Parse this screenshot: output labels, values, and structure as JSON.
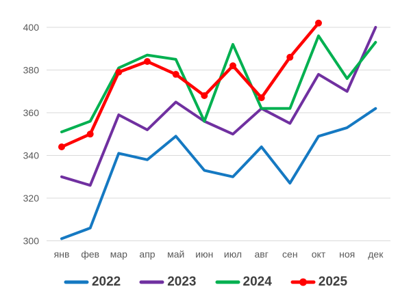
{
  "chart_data": {
    "type": "line",
    "title": "",
    "xlabel": "",
    "ylabel": "",
    "categories": [
      "янв",
      "фев",
      "мар",
      "апр",
      "май",
      "июн",
      "июл",
      "авг",
      "сен",
      "окт",
      "ноя",
      "дек"
    ],
    "y_ticks": [
      300,
      320,
      340,
      360,
      380,
      400
    ],
    "ylim": [
      300,
      400
    ],
    "grid": true,
    "legend_position": "bottom",
    "gridline_color": "#D9D9D9",
    "axis_label_color": "#595959",
    "legend_text_color": "#404040",
    "background_color": "#FFFFFF",
    "series": [
      {
        "name": "2022",
        "color": "#1579C2",
        "markers": false,
        "values": [
          301,
          306,
          341,
          338,
          349,
          333,
          330,
          344,
          327,
          349,
          353,
          362
        ]
      },
      {
        "name": "2023",
        "color": "#7030A0",
        "markers": false,
        "values": [
          330,
          326,
          359,
          352,
          365,
          356,
          350,
          362,
          355,
          378,
          370,
          400
        ]
      },
      {
        "name": "2024",
        "color": "#00B050",
        "markers": false,
        "values": [
          351,
          356,
          381,
          387,
          385,
          356,
          392,
          362,
          362,
          396,
          376,
          393
        ]
      },
      {
        "name": "2025",
        "color": "#FF0000",
        "markers": true,
        "values": [
          344,
          350,
          379,
          384,
          378,
          368,
          382,
          367,
          386,
          402,
          null,
          null
        ]
      }
    ]
  }
}
